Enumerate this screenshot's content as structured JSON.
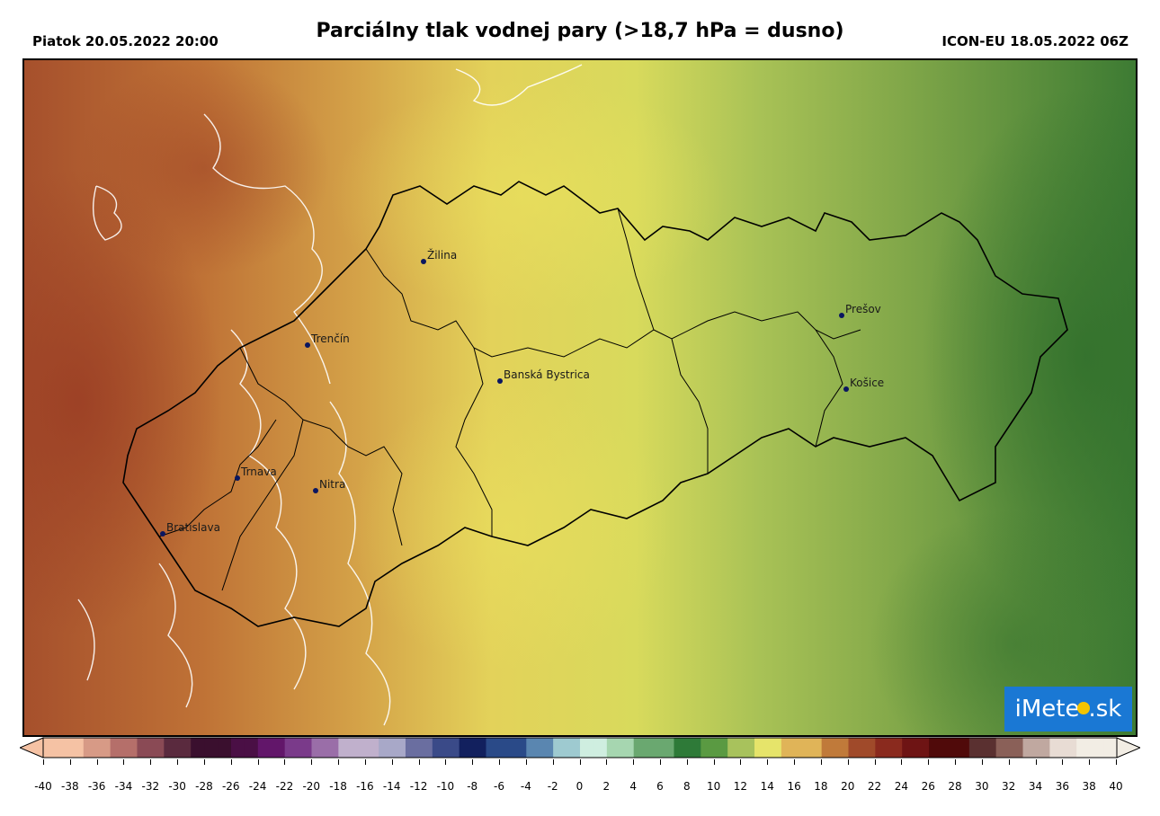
{
  "header": {
    "left": "Piatok 20.05.2022 20:00",
    "title": "Parciálny tlak vodnej pary (>18,7 hPa = dusno)",
    "right": "ICON-EU 18.05.2022 06Z"
  },
  "cities": [
    {
      "name": "Žilina"
    },
    {
      "name": "Prešov"
    },
    {
      "name": "Trenčín"
    },
    {
      "name": "Banská Bystrica"
    },
    {
      "name": "Košice"
    },
    {
      "name": "Trnava"
    },
    {
      "name": "Nitra"
    },
    {
      "name": "Bratislava"
    }
  ],
  "colorbar": {
    "ticks": [
      "-40",
      "-38",
      "-36",
      "-34",
      "-32",
      "-30",
      "-28",
      "-26",
      "-24",
      "-22",
      "-20",
      "-18",
      "-16",
      "-14",
      "-12",
      "-10",
      "-8",
      "-6",
      "-4",
      "-2",
      "0",
      "2",
      "4",
      "6",
      "8",
      "10",
      "12",
      "14",
      "16",
      "18",
      "20",
      "22",
      "24",
      "26",
      "28",
      "30",
      "32",
      "34",
      "36",
      "38",
      "40"
    ]
  },
  "logo": {
    "left": "iMete",
    "right": ".sk",
    "icon": "sun-icon"
  },
  "colors": {
    "warm_brown": "#a24a2a",
    "orange": "#c98a3e",
    "yellow": "#e6dd5a",
    "light_green": "#a8bf55",
    "dark_green": "#3e7d32",
    "logo_blue": "#1a78d4"
  }
}
